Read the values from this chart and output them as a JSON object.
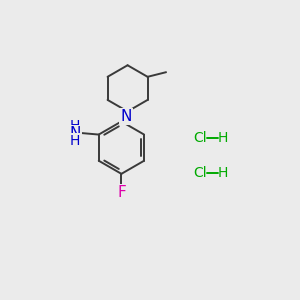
{
  "bg_color": "#ebebeb",
  "bond_color": "#3a3a3a",
  "bond_width": 1.4,
  "atom_colors": {
    "N": "#0000cc",
    "F": "#dd00aa",
    "Cl": "#00aa00",
    "C": "#000000",
    "H": "#000000"
  },
  "font_size_atom": 10,
  "font_size_hcl": 10
}
